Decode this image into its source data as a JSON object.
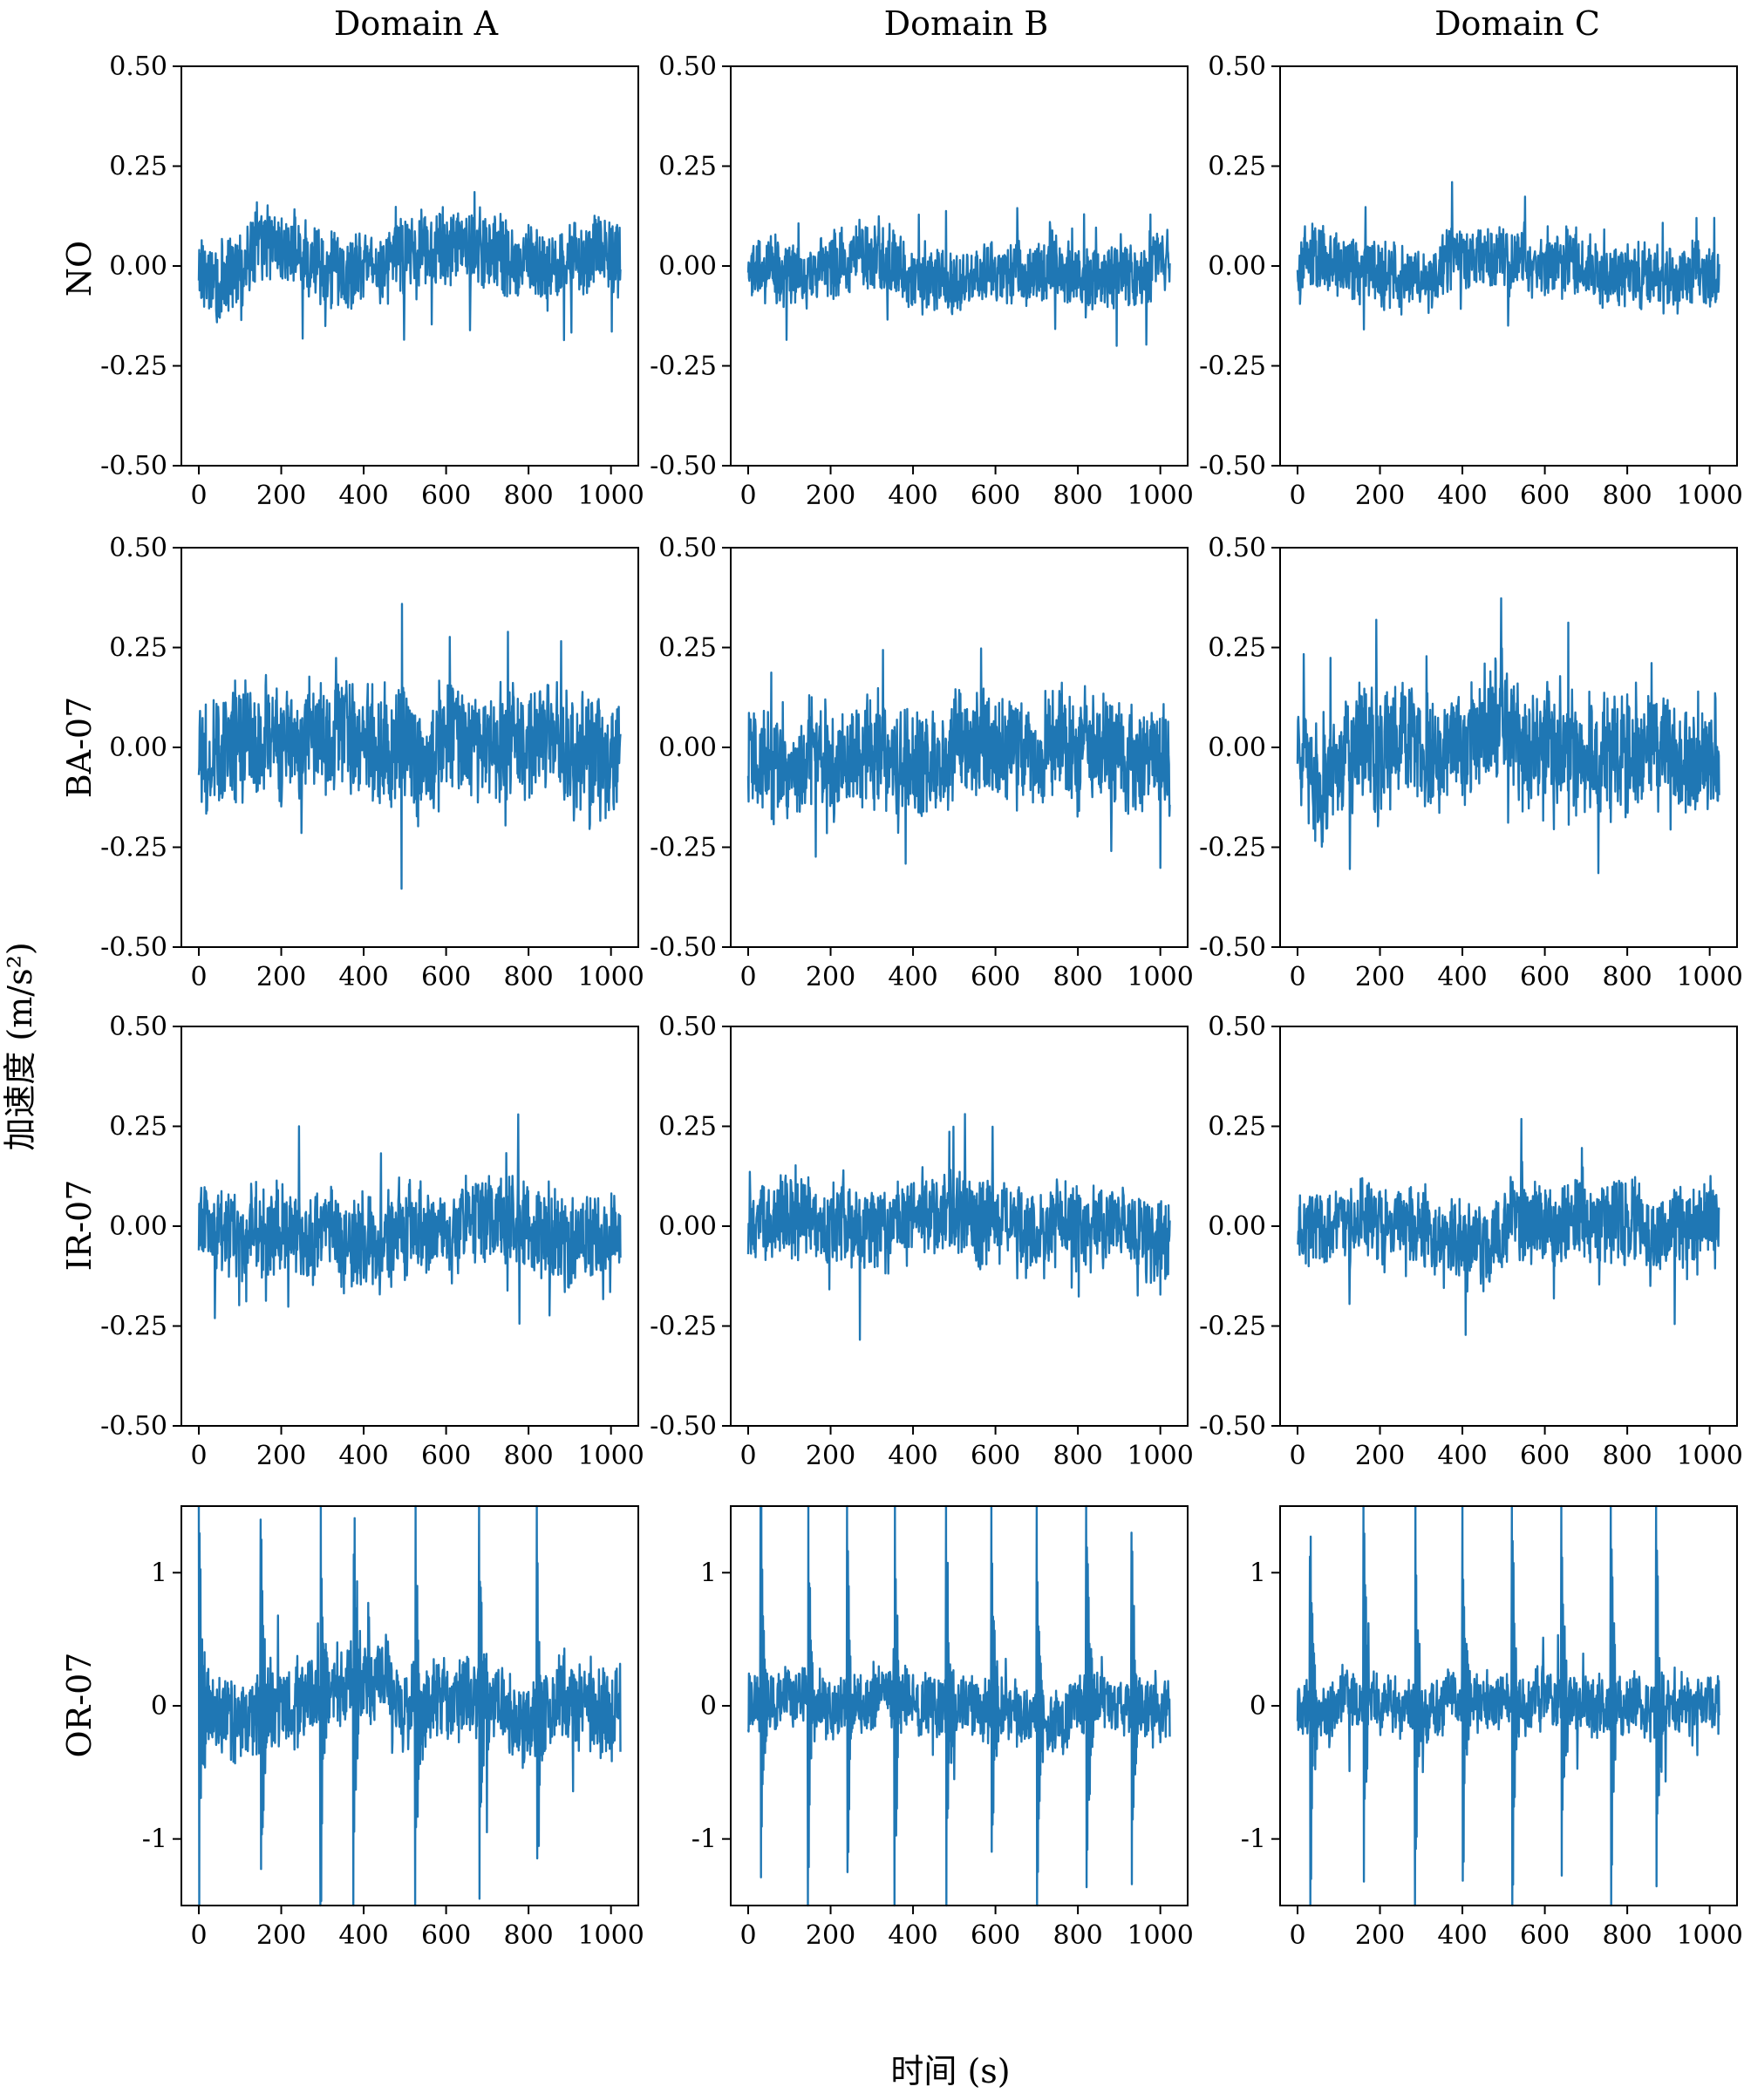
{
  "figure": {
    "ylabel": "加速度 (m/s²)",
    "xlabel": "时间 (s)",
    "columns": [
      "Domain A",
      "Domain B",
      "Domain C"
    ],
    "rows": [
      "NO",
      "BA-07",
      "IR-07",
      "OR-07"
    ],
    "line_color": "#1f77b4"
  },
  "chart_data": [
    {
      "type": "line",
      "row": "NO",
      "column": "Domain A",
      "xlabel": "",
      "ylabel": "",
      "xlim": [
        0,
        1024
      ],
      "ylim": [
        -0.5,
        0.5
      ],
      "xticks": [
        0,
        200,
        400,
        600,
        800,
        1000
      ],
      "xticklabels": [
        "0",
        "200",
        "400",
        "600",
        "800",
        "1000"
      ],
      "yticks": [
        -0.5,
        -0.25,
        0,
        0.25,
        0.5
      ],
      "yticklabels": [
        "-0.50",
        "-0.25",
        "0.00",
        "0.25",
        "0.50"
      ],
      "series": [
        {
          "values": {
            "n": 1024,
            "amplitude": 0.09,
            "envelope": [
              [
                -0.2,
                0.22
              ],
              [
                -0.2,
                0.21
              ]
            ],
            "seed": 11
          }
        }
      ]
    },
    {
      "type": "line",
      "row": "NO",
      "column": "Domain B",
      "xlabel": "",
      "ylabel": "",
      "xlim": [
        0,
        1024
      ],
      "ylim": [
        -0.5,
        0.5
      ],
      "xticks": [
        0,
        200,
        400,
        600,
        800,
        1000
      ],
      "xticklabels": [
        "0",
        "200",
        "400",
        "600",
        "800",
        "1000"
      ],
      "yticks": [
        -0.5,
        -0.25,
        0,
        0.25,
        0.5
      ],
      "yticklabels": [
        "-0.50",
        "-0.25",
        "0.00",
        "0.25",
        "0.50"
      ],
      "series": [
        {
          "values": {
            "n": 1024,
            "amplitude": 0.08,
            "envelope": [
              [
                -0.2,
                0.19
              ]
            ],
            "seed": 12
          }
        }
      ]
    },
    {
      "type": "line",
      "row": "NO",
      "column": "Domain C",
      "xlabel": "",
      "ylabel": "",
      "xlim": [
        0,
        1024
      ],
      "ylim": [
        -0.5,
        0.5
      ],
      "xticks": [
        0,
        200,
        400,
        600,
        800,
        1000
      ],
      "xticklabels": [
        "0",
        "200",
        "400",
        "600",
        "800",
        "1000"
      ],
      "yticks": [
        -0.5,
        -0.25,
        0,
        0.25,
        0.5
      ],
      "yticklabels": [
        "-0.50",
        "-0.25",
        "0.00",
        "0.25",
        "0.50"
      ],
      "series": [
        {
          "values": {
            "n": 1024,
            "amplitude": 0.08,
            "envelope": [
              [
                -0.17,
                0.21
              ]
            ],
            "seed": 13
          }
        }
      ]
    },
    {
      "type": "line",
      "row": "BA-07",
      "column": "Domain A",
      "xlabel": "",
      "ylabel": "",
      "xlim": [
        0,
        1024
      ],
      "ylim": [
        -0.5,
        0.5
      ],
      "xticks": [
        0,
        200,
        400,
        600,
        800,
        1000
      ],
      "xticklabels": [
        "0",
        "200",
        "400",
        "600",
        "800",
        "1000"
      ],
      "yticks": [
        -0.5,
        -0.25,
        0,
        0.25,
        0.5
      ],
      "yticklabels": [
        "-0.50",
        "-0.25",
        "0.00",
        "0.25",
        "0.50"
      ],
      "series": [
        {
          "values": {
            "n": 1024,
            "amplitude": 0.14,
            "envelope": [
              [
                -0.48,
                0.46
              ]
            ],
            "seed": 21
          }
        }
      ]
    },
    {
      "type": "line",
      "row": "BA-07",
      "column": "Domain B",
      "xlabel": "",
      "ylabel": "",
      "xlim": [
        0,
        1024
      ],
      "ylim": [
        -0.5,
        0.5
      ],
      "xticks": [
        0,
        200,
        400,
        600,
        800,
        1000
      ],
      "xticklabels": [
        "0",
        "200",
        "400",
        "600",
        "800",
        "1000"
      ],
      "yticks": [
        -0.5,
        -0.25,
        0,
        0.25,
        0.5
      ],
      "yticklabels": [
        "-0.50",
        "-0.25",
        "0.00",
        "0.25",
        "0.50"
      ],
      "series": [
        {
          "values": {
            "n": 1024,
            "amplitude": 0.13,
            "envelope": [
              [
                -0.44,
                0.42
              ]
            ],
            "seed": 22
          }
        }
      ]
    },
    {
      "type": "line",
      "row": "BA-07",
      "column": "Domain C",
      "xlabel": "",
      "ylabel": "",
      "xlim": [
        0,
        1024
      ],
      "ylim": [
        -0.5,
        0.5
      ],
      "xticks": [
        0,
        200,
        400,
        600,
        800,
        1000
      ],
      "xticklabels": [
        "0",
        "200",
        "400",
        "600",
        "800",
        "1000"
      ],
      "yticks": [
        -0.5,
        -0.25,
        0,
        0.25,
        0.5
      ],
      "yticklabels": [
        "-0.50",
        "-0.25",
        "0.00",
        "0.25",
        "0.50"
      ],
      "series": [
        {
          "values": {
            "n": 1024,
            "amplitude": 0.14,
            "envelope": [
              [
                -0.41,
                0.46
              ]
            ],
            "seed": 23
          }
        }
      ]
    },
    {
      "type": "line",
      "row": "IR-07",
      "column": "Domain A",
      "xlabel": "",
      "ylabel": "",
      "xlim": [
        0,
        1024
      ],
      "ylim": [
        -0.5,
        0.5
      ],
      "xticks": [
        0,
        200,
        400,
        600,
        800,
        1000
      ],
      "xticklabels": [
        "0",
        "200",
        "400",
        "600",
        "800",
        "1000"
      ],
      "yticks": [
        -0.5,
        -0.25,
        0,
        0.25,
        0.5
      ],
      "yticklabels": [
        "-0.50",
        "-0.25",
        "0.00",
        "0.25",
        "0.50"
      ],
      "series": [
        {
          "values": {
            "n": 1024,
            "amplitude": 0.11,
            "envelope": [
              [
                -0.44,
                0.5
              ]
            ],
            "seed": 31
          }
        }
      ]
    },
    {
      "type": "line",
      "row": "IR-07",
      "column": "Domain B",
      "xlabel": "",
      "ylabel": "",
      "xlim": [
        0,
        1024
      ],
      "ylim": [
        -0.5,
        0.5
      ],
      "xticks": [
        0,
        200,
        400,
        600,
        800,
        1000
      ],
      "xticklabels": [
        "0",
        "200",
        "400",
        "600",
        "800",
        "1000"
      ],
      "yticks": [
        -0.5,
        -0.25,
        0,
        0.25,
        0.5
      ],
      "yticklabels": [
        "-0.50",
        "-0.25",
        "0.00",
        "0.25",
        "0.50"
      ],
      "series": [
        {
          "values": {
            "n": 1024,
            "amplitude": 0.1,
            "envelope": [
              [
                -0.34,
                0.36
              ]
            ],
            "seed": 32
          }
        }
      ]
    },
    {
      "type": "line",
      "row": "IR-07",
      "column": "Domain C",
      "xlabel": "",
      "ylabel": "",
      "xlim": [
        0,
        1024
      ],
      "ylim": [
        -0.5,
        0.5
      ],
      "xticks": [
        0,
        200,
        400,
        600,
        800,
        1000
      ],
      "xticklabels": [
        "0",
        "200",
        "400",
        "600",
        "800",
        "1000"
      ],
      "yticks": [
        -0.5,
        -0.25,
        0,
        0.25,
        0.5
      ],
      "yticklabels": [
        "-0.50",
        "-0.25",
        "0.00",
        "0.25",
        "0.50"
      ],
      "series": [
        {
          "values": {
            "n": 1024,
            "amplitude": 0.1,
            "envelope": [
              [
                -0.39,
                0.36
              ]
            ],
            "seed": 33
          }
        }
      ]
    },
    {
      "type": "line",
      "row": "OR-07",
      "column": "Domain A",
      "xlabel": "",
      "ylabel": "",
      "xlim": [
        0,
        1024
      ],
      "ylim": [
        -1.5,
        1.5
      ],
      "xticks": [
        0,
        200,
        400,
        600,
        800,
        1000
      ],
      "xticklabels": [
        "0",
        "200",
        "400",
        "600",
        "800",
        "1000"
      ],
      "yticks": [
        -1,
        0,
        1
      ],
      "yticklabels": [
        "-1",
        "0",
        "1"
      ],
      "series": [
        {
          "values": {
            "n": 1024,
            "amplitude": 0.3,
            "impulses": [
              0,
              150,
              295,
              375,
              525,
              680,
              820
            ],
            "seed": 41
          }
        }
      ]
    },
    {
      "type": "line",
      "row": "OR-07",
      "column": "Domain B",
      "xlabel": "",
      "ylabel": "",
      "xlim": [
        0,
        1024
      ],
      "ylim": [
        -1.5,
        1.5
      ],
      "xticks": [
        0,
        200,
        400,
        600,
        800,
        1000
      ],
      "xticklabels": [
        "0",
        "200",
        "400",
        "600",
        "800",
        "1000"
      ],
      "yticks": [
        -1,
        0,
        1
      ],
      "yticklabels": [
        "-1",
        "0",
        "1"
      ],
      "series": [
        {
          "values": {
            "n": 1024,
            "amplitude": 0.22,
            "impulses": [
              30,
              145,
              240,
              355,
              480,
              590,
              700,
              820,
              930
            ],
            "seed": 42
          }
        }
      ]
    },
    {
      "type": "line",
      "row": "OR-07",
      "column": "Domain C",
      "xlabel": "",
      "ylabel": "",
      "xlim": [
        0,
        1024
      ],
      "ylim": [
        -1.5,
        1.5
      ],
      "xticks": [
        0,
        200,
        400,
        600,
        800,
        1000
      ],
      "xticklabels": [
        "0",
        "200",
        "400",
        "600",
        "800",
        "1000"
      ],
      "yticks": [
        -1,
        0,
        1
      ],
      "yticklabels": [
        "-1",
        "0",
        "1"
      ],
      "series": [
        {
          "values": {
            "n": 1024,
            "amplitude": 0.22,
            "impulses": [
              30,
              160,
              285,
              400,
              520,
              640,
              760,
              870
            ],
            "seed": 43
          }
        }
      ]
    }
  ]
}
